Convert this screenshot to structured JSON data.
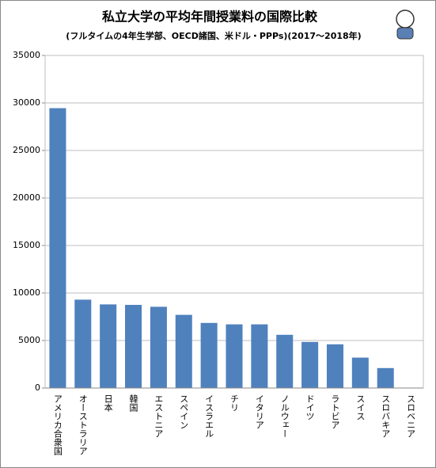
{
  "chart_data": {
    "type": "bar",
    "title": "私立大学の平均年間授業料の国際比較",
    "subtitle": "(フルタイムの4年生学部、OECD諸国、米ドル・PPPs)(2017～2018年)",
    "categories": [
      "アメリカ合衆国",
      "オーストラリア",
      "日本",
      "韓国",
      "エストニア",
      "スペイン",
      "イスラエル",
      "チリ",
      "イタリア",
      "ノルウェー",
      "ドイツ",
      "ラトビア",
      "スイス",
      "スロバキア",
      "スロベニア"
    ],
    "values": [
      29450,
      9300,
      8800,
      8750,
      8550,
      7700,
      6850,
      6700,
      6700,
      5600,
      4850,
      4600,
      3200,
      2100,
      0
    ],
    "color": "#4f81bd",
    "ylim": [
      0,
      35000
    ],
    "yticks": [
      0,
      5000,
      10000,
      15000,
      20000,
      25000,
      30000,
      35000
    ],
    "grid": true
  }
}
